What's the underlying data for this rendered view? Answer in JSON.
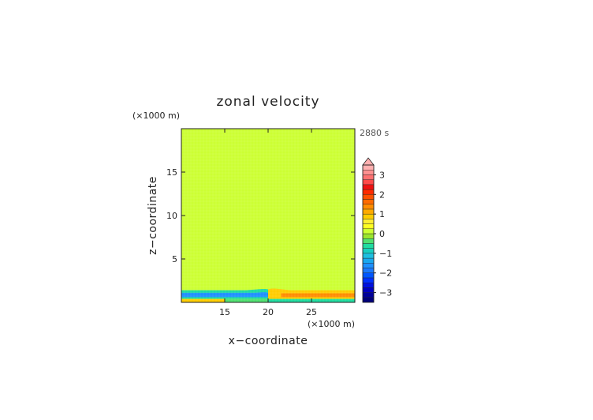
{
  "chart_data": {
    "type": "heatmap",
    "title": "zonal velocity",
    "xlabel": "x−coordinate",
    "ylabel": "z−coordinate",
    "x_unit": "(×1000 m)",
    "y_unit": "(×1000 m)",
    "time_label": "2880 s",
    "xlim": [
      10,
      30
    ],
    "ylim": [
      0,
      20
    ],
    "x_ticks": [
      15,
      20,
      25
    ],
    "y_ticks": [
      5,
      10,
      15
    ],
    "grid": false,
    "legend": "right",
    "colorbar": {
      "levels": [
        -3.5,
        -3.25,
        -3,
        -2.75,
        -2.5,
        -2.25,
        -2,
        -1.75,
        -1.5,
        -1.25,
        -1,
        -0.75,
        -0.5,
        -0.25,
        0,
        0.25,
        0.5,
        0.75,
        1,
        1.25,
        1.5,
        1.75,
        2,
        2.25,
        2.5,
        2.75,
        3,
        3.25,
        3.5
      ],
      "colors": [
        "#00007a",
        "#00009a",
        "#0000c0",
        "#0010e0",
        "#0030ff",
        "#0055ff",
        "#1a78ff",
        "#1e90ff",
        "#1aa8ee",
        "#1ebfe0",
        "#18cfc0",
        "#20dca0",
        "#50e070",
        "#9ae52e",
        "#ccff33",
        "#ffff22",
        "#ffee33",
        "#ffcc00",
        "#ffaa00",
        "#ff8c00",
        "#ff6a00",
        "#ff5000",
        "#ff2a00",
        "#ee1111",
        "#ff4a4a",
        "#ff7070",
        "#ff9090",
        "#ffb0b0"
      ],
      "tick_labels": [
        "3",
        "2",
        "1",
        "0",
        "−1",
        "−2",
        "−3"
      ],
      "tick_values": [
        3,
        2,
        1,
        0,
        -1,
        -2,
        -3
      ],
      "extend": "max"
    },
    "regions": [
      {
        "x": [
          10,
          20
        ],
        "z": [
          18.4,
          20
        ],
        "value": 0.05
      },
      {
        "x": [
          10,
          20
        ],
        "z": [
          16.3,
          18.4
        ],
        "value": 0.2
      },
      {
        "x": [
          10,
          20
        ],
        "z": [
          12.8,
          16.3
        ],
        "value": 0.05
      },
      {
        "x": [
          10,
          20
        ],
        "z": [
          7.2,
          12.8
        ],
        "value": 0.2
      },
      {
        "x": [
          10,
          20
        ],
        "z": [
          3.5,
          7.2
        ],
        "value": 0.05
      },
      {
        "x": [
          10,
          20
        ],
        "z": [
          1.2,
          3.5
        ],
        "value": 0.2
      },
      {
        "x": [
          20,
          30
        ],
        "z": [
          18.7,
          20
        ],
        "value": 0.2
      },
      {
        "x": [
          20,
          30
        ],
        "z": [
          16.1,
          18.7
        ],
        "value": 0.05
      },
      {
        "x": [
          20,
          30
        ],
        "z": [
          12.6,
          16.1
        ],
        "value": 0.2
      },
      {
        "x": [
          20,
          30
        ],
        "z": [
          7.6,
          12.6
        ],
        "value": 0.05
      },
      {
        "x": [
          20,
          30
        ],
        "z": [
          4,
          7.6
        ],
        "value": 0.2
      },
      {
        "x": [
          20,
          30
        ],
        "z": [
          1.2,
          4
        ],
        "value": 0.05
      }
    ]
  }
}
